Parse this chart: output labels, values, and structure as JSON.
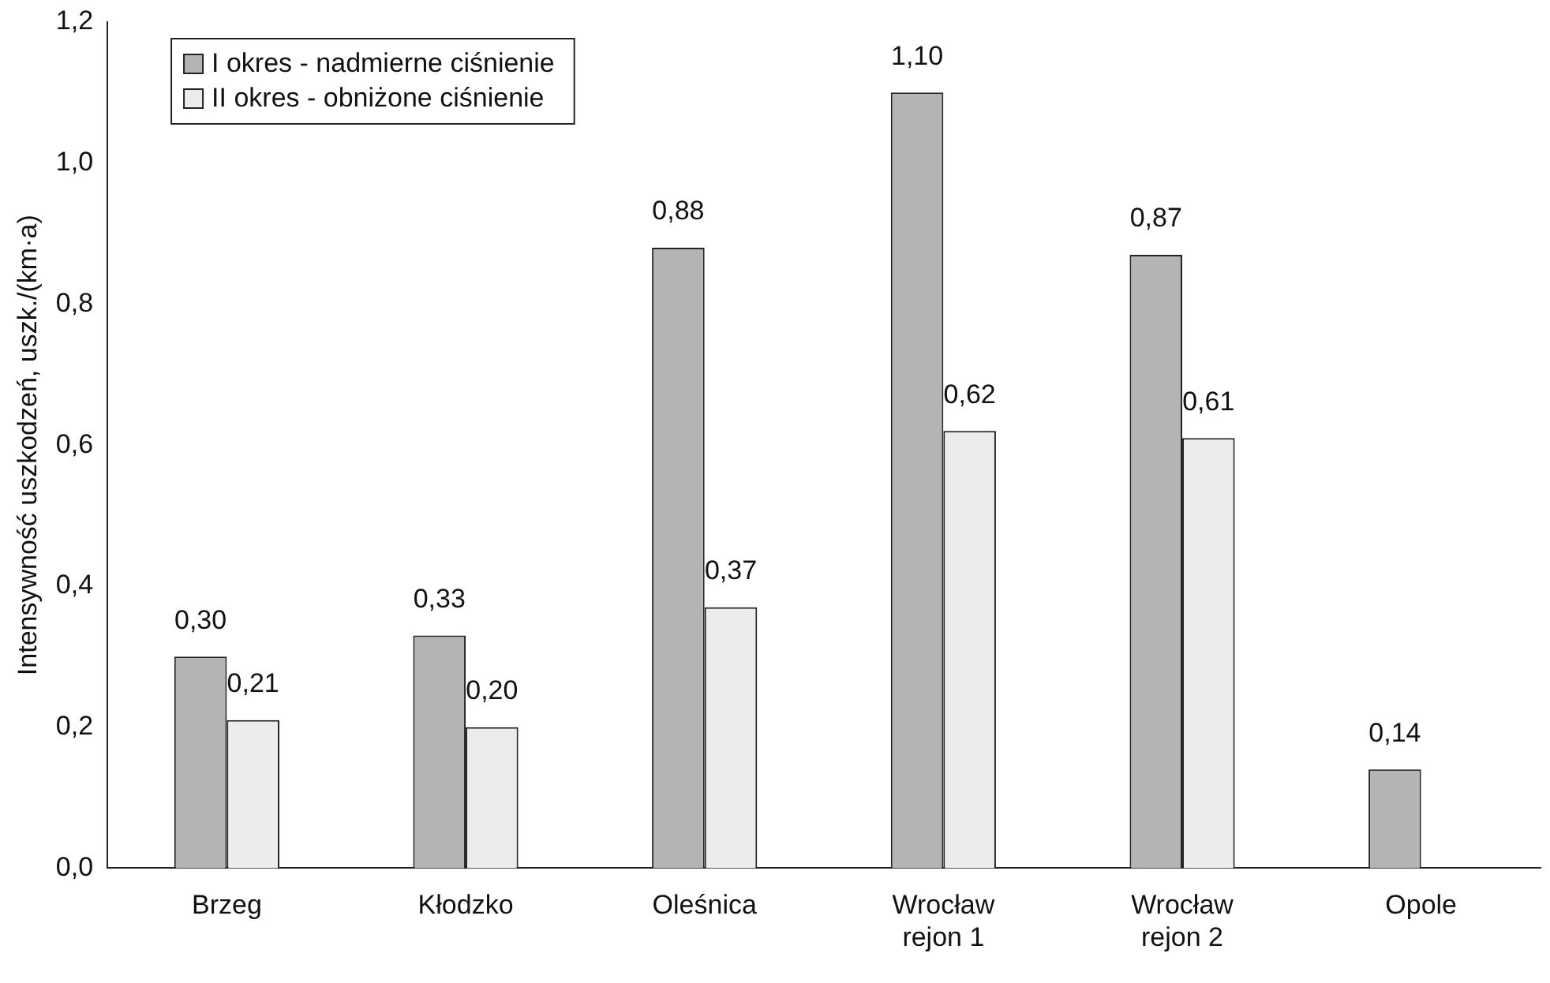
{
  "chart_data": {
    "type": "bar",
    "ylabel": "Intensywność uszkodzeń, uszk./(km·a)",
    "categories": [
      "Brzeg",
      "Kłodzko",
      "Oleśnica",
      "Wrocław\nrejon 1",
      "Wrocław\nrejon 2",
      "Opole"
    ],
    "series": [
      {
        "name": "I okres - nadmierne ciśnienie",
        "color": "#b4b4b4",
        "values": [
          0.3,
          0.33,
          0.88,
          1.1,
          0.87,
          0.14
        ],
        "value_labels": [
          "0,30",
          "0,33",
          "0,88",
          "1,10",
          "0,87",
          "0,14"
        ]
      },
      {
        "name": "II okres - obniżone ciśnienie",
        "color": "#ececec",
        "values": [
          0.21,
          0.2,
          0.37,
          0.62,
          0.61,
          null
        ],
        "value_labels": [
          "0,21",
          "0,20",
          "0,37",
          "0,62",
          "0,61",
          null
        ]
      }
    ],
    "ylim": [
      0,
      1.2
    ],
    "yticks": [
      {
        "value": 0,
        "label": "0,0"
      },
      {
        "value": 0.2,
        "label": "0,2"
      },
      {
        "value": 0.4,
        "label": "0,4"
      },
      {
        "value": 0.6,
        "label": "0,6"
      },
      {
        "value": 0.8,
        "label": "0,8"
      },
      {
        "value": 1.0,
        "label": "1,0"
      },
      {
        "value": 1.2,
        "label": "1,2"
      }
    ],
    "grid": false,
    "legend": "top left"
  }
}
